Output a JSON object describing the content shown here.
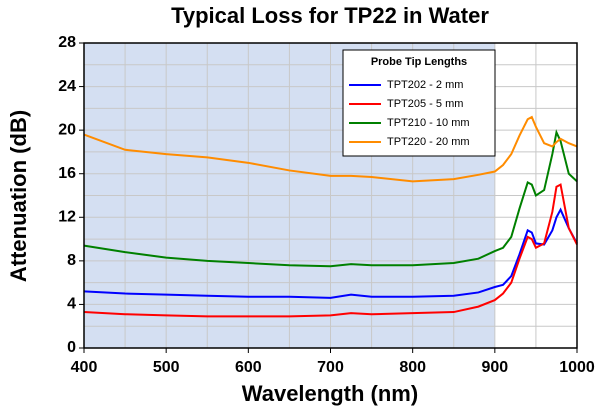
{
  "chart_data": {
    "type": "line",
    "title": "Typical Loss for TP22 in Water",
    "x_label": "Wavelength (nm)",
    "y_label": "Attenuation (dB)",
    "legend_title": "Probe Tip Lengths",
    "legend_position": "upper-right",
    "x": [
      400,
      450,
      500,
      550,
      600,
      650,
      700,
      725,
      750,
      800,
      850,
      880,
      900,
      910,
      920,
      930,
      940,
      945,
      950,
      960,
      970,
      975,
      980,
      990,
      1000
    ],
    "series": [
      {
        "name": "TPT202 - 2 mm",
        "color": "#0000ff",
        "values": [
          5.2,
          5.0,
          4.9,
          4.8,
          4.7,
          4.7,
          4.6,
          4.9,
          4.7,
          4.7,
          4.8,
          5.1,
          5.6,
          5.8,
          6.6,
          8.6,
          10.8,
          10.6,
          9.6,
          9.5,
          10.8,
          12.0,
          12.7,
          11.0,
          9.6
        ]
      },
      {
        "name": "TPT205 - 5 mm",
        "color": "#ff0000",
        "values": [
          3.3,
          3.1,
          3.0,
          2.9,
          2.9,
          2.9,
          3.0,
          3.2,
          3.1,
          3.2,
          3.3,
          3.8,
          4.4,
          5.0,
          6.0,
          8.2,
          10.2,
          10.0,
          9.2,
          9.6,
          12.5,
          14.8,
          15.0,
          11.0,
          9.5
        ]
      },
      {
        "name": "TPT210 - 10 mm",
        "color": "#008000",
        "values": [
          9.4,
          8.8,
          8.3,
          8.0,
          7.8,
          7.6,
          7.5,
          7.7,
          7.6,
          7.6,
          7.8,
          8.2,
          8.9,
          9.2,
          10.2,
          12.8,
          15.2,
          15.0,
          14.0,
          14.5,
          17.8,
          19.8,
          19.0,
          16.0,
          15.3
        ]
      },
      {
        "name": "TPT220 - 20 mm",
        "color": "#ff8c00",
        "values": [
          19.6,
          18.2,
          17.8,
          17.5,
          17.0,
          16.3,
          15.8,
          15.8,
          15.7,
          15.3,
          15.5,
          15.9,
          16.2,
          16.8,
          17.8,
          19.5,
          21.0,
          21.2,
          20.3,
          18.8,
          18.5,
          18.9,
          19.2,
          18.8,
          18.5
        ]
      }
    ],
    "xlim": [
      400,
      1000
    ],
    "xticks": [
      400,
      500,
      600,
      700,
      800,
      900,
      1000
    ],
    "ylim": [
      0,
      28
    ],
    "yticks": [
      0,
      4,
      8,
      12,
      16,
      20,
      24,
      28
    ],
    "shaded_xrange": [
      400,
      900
    ],
    "shade_color": "#d4dff2",
    "grid": true,
    "minor_grid": true
  }
}
